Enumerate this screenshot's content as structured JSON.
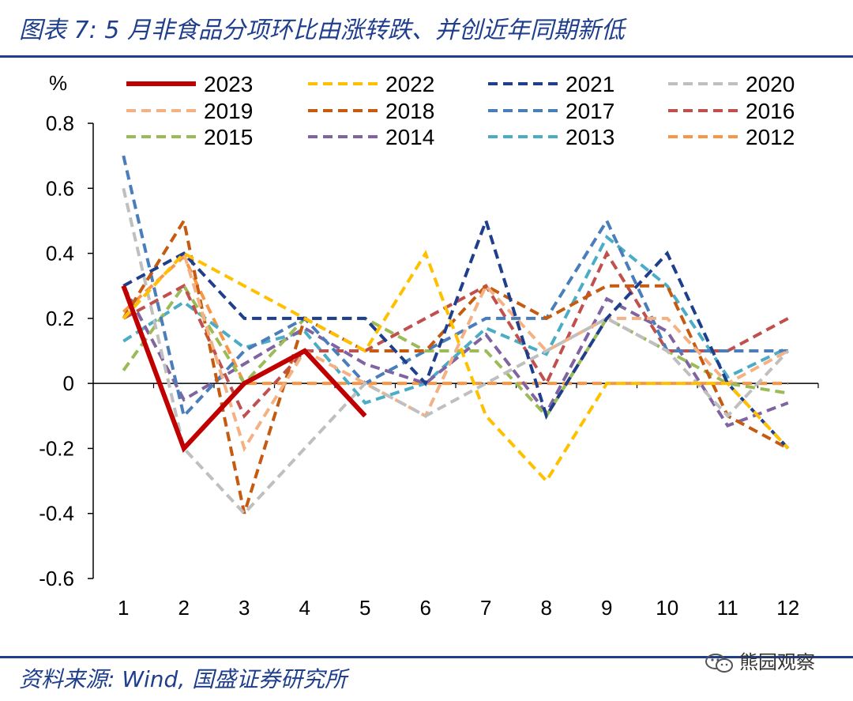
{
  "figure": {
    "title": "图表 7:  5 月非食品分项环比由涨转跌、并创近年同期新低",
    "source": "资料来源: Wind, 国盛证券研究所",
    "watermark": "熊园观察"
  },
  "chart_data": {
    "type": "line",
    "title": "",
    "xlabel": "",
    "ylabel": "%",
    "categories": [
      "1",
      "2",
      "3",
      "4",
      "5",
      "6",
      "7",
      "8",
      "9",
      "10",
      "11",
      "12"
    ],
    "ylim": [
      -0.6,
      0.8
    ],
    "yticks": [
      -0.6,
      -0.4,
      -0.2,
      0,
      0.2,
      0.4,
      0.6,
      0.8
    ],
    "ytick_labels": [
      "-0.6",
      "-0.4",
      "-0.2",
      "0",
      "0.2",
      "0.4",
      "0.6",
      "0.8"
    ],
    "grid": false,
    "legend_position": "top",
    "series": [
      {
        "name": "2023",
        "color": "#c00000",
        "style": "solid",
        "values": [
          0.3,
          -0.2,
          0.0,
          0.1,
          -0.1,
          null,
          null,
          null,
          null,
          null,
          null,
          null
        ]
      },
      {
        "name": "2022",
        "color": "#ffc000",
        "style": "dashed",
        "values": [
          0.2,
          0.4,
          0.3,
          0.2,
          0.1,
          0.4,
          -0.1,
          -0.3,
          0.0,
          0.0,
          0.0,
          -0.2
        ]
      },
      {
        "name": "2021",
        "color": "#1f3f8c",
        "style": "dashed",
        "values": [
          0.3,
          0.4,
          0.2,
          0.2,
          0.2,
          0.0,
          0.5,
          -0.1,
          0.2,
          0.4,
          0.0,
          -0.2
        ]
      },
      {
        "name": "2020",
        "color": "#bfbfbf",
        "style": "dashed",
        "values": [
          0.6,
          -0.2,
          -0.4,
          -0.2,
          0.0,
          -0.1,
          0.0,
          0.1,
          0.2,
          0.1,
          -0.1,
          0.1
        ]
      },
      {
        "name": "2019",
        "color": "#f4b183",
        "style": "dashed",
        "values": [
          0.2,
          0.4,
          -0.2,
          0.1,
          0.0,
          -0.1,
          0.3,
          0.1,
          0.2,
          0.2,
          0.0,
          0.1
        ]
      },
      {
        "name": "2018",
        "color": "#c55a11",
        "style": "dashed",
        "values": [
          0.2,
          0.5,
          -0.4,
          0.2,
          0.1,
          0.1,
          0.3,
          0.2,
          0.3,
          0.3,
          -0.1,
          -0.2
        ]
      },
      {
        "name": "2017",
        "color": "#4a7ebb",
        "style": "dashed",
        "values": [
          0.7,
          -0.1,
          0.1,
          0.2,
          0.0,
          0.1,
          0.2,
          0.2,
          0.5,
          0.1,
          0.1,
          0.1
        ]
      },
      {
        "name": "2016",
        "color": "#c0504d",
        "style": "dashed",
        "values": [
          0.2,
          0.3,
          -0.1,
          0.1,
          0.1,
          0.2,
          0.3,
          0.0,
          0.4,
          0.1,
          0.1,
          0.2
        ]
      },
      {
        "name": "2015",
        "color": "#9bbb59",
        "style": "dashed",
        "values": [
          0.04,
          0.3,
          0.0,
          0.2,
          0.2,
          0.1,
          0.1,
          -0.1,
          0.2,
          0.1,
          0.0,
          -0.03
        ]
      },
      {
        "name": "2014",
        "color": "#8064a2",
        "style": "dashed",
        "values": [
          0.3,
          -0.05,
          0.06,
          0.17,
          0.06,
          0.0,
          0.15,
          -0.09,
          0.26,
          0.16,
          -0.13,
          -0.06
        ]
      },
      {
        "name": "2013",
        "color": "#4bacc6",
        "style": "dashed",
        "values": [
          0.13,
          0.25,
          0.11,
          0.16,
          -0.06,
          0.0,
          0.17,
          0.09,
          0.45,
          0.3,
          0.02,
          0.11
        ]
      },
      {
        "name": "2012",
        "color": "#f79646",
        "style": "dashed",
        "values": [
          0.22,
          0.39,
          0.0,
          0.0,
          0.0,
          0.0,
          0.0,
          0.0,
          0.0,
          0.0,
          0.0,
          0.0
        ]
      }
    ]
  }
}
